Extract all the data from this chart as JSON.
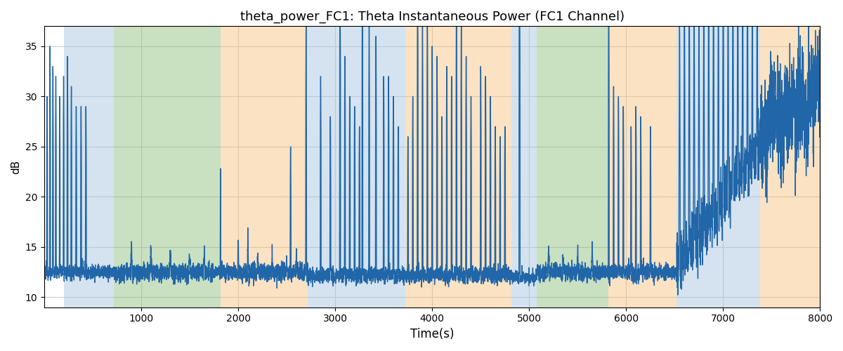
{
  "title": "theta_power_FC1: Theta Instantaneous Power (FC1 Channel)",
  "xlabel": "Time(s)",
  "ylabel": "dB",
  "xlim": [
    0,
    8000
  ],
  "ylim": [
    9,
    37
  ],
  "yticks": [
    10,
    15,
    20,
    25,
    30,
    35
  ],
  "xticks": [
    1000,
    2000,
    3000,
    4000,
    5000,
    6000,
    7000,
    8000
  ],
  "line_color": "#2166a8",
  "line_width": 1.0,
  "background_color": "#ffffff",
  "grid_color": "#cccccc",
  "bands": [
    {
      "xmin": 200,
      "xmax": 720,
      "color": "#aac8e0",
      "alpha": 0.5
    },
    {
      "xmin": 720,
      "xmax": 1820,
      "color": "#88bb77",
      "alpha": 0.45
    },
    {
      "xmin": 1820,
      "xmax": 2720,
      "color": "#f5c07a",
      "alpha": 0.45
    },
    {
      "xmin": 2720,
      "xmax": 3720,
      "color": "#aac8e0",
      "alpha": 0.5
    },
    {
      "xmin": 3720,
      "xmax": 4820,
      "color": "#f5c07a",
      "alpha": 0.45
    },
    {
      "xmin": 4820,
      "xmax": 5080,
      "color": "#aac8e0",
      "alpha": 0.5
    },
    {
      "xmin": 5080,
      "xmax": 5820,
      "color": "#88bb77",
      "alpha": 0.45
    },
    {
      "xmin": 5820,
      "xmax": 6520,
      "color": "#f5c07a",
      "alpha": 0.45
    },
    {
      "xmin": 6520,
      "xmax": 7380,
      "color": "#aac8e0",
      "alpha": 0.5
    },
    {
      "xmin": 7380,
      "xmax": 8100,
      "color": "#f5c07a",
      "alpha": 0.45
    }
  ],
  "title_fontsize": 13
}
